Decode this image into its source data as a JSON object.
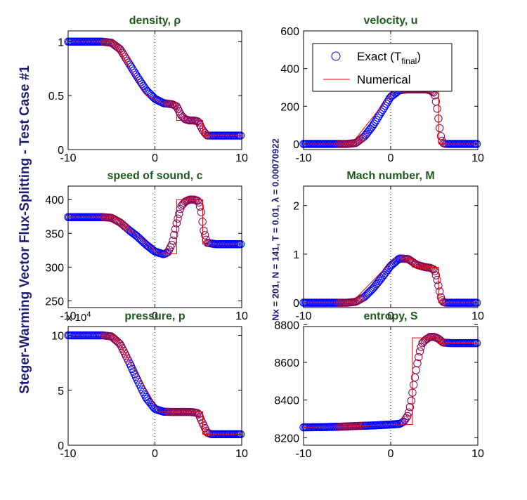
{
  "figure": {
    "side_title": "Steger-Warming Vector Flux-Splitting - Test Case #1",
    "side_subtitle": "Nx = 201,  N = 141,  T = 0.01,  λ = 0.00070922"
  },
  "legend": {
    "exact_label": "Exact (T",
    "exact_subscript": "final",
    "exact_close": ")",
    "numerical_label": "Numerical"
  },
  "colors": {
    "exact_marker": "#0000ff",
    "exact_marker_alt": "#8b0050",
    "numerical_line": "#e00000",
    "title": "#1f5a1f"
  },
  "chart_data": [
    {
      "type": "line",
      "title": "density, ρ",
      "xlim": [
        -10,
        10
      ],
      "ylim": [
        0,
        1.1
      ],
      "xticks": [
        -10,
        0,
        10
      ],
      "yticks": [
        0,
        0.5,
        1
      ],
      "ytick_labels": [
        "0",
        "0.5",
        "1"
      ],
      "scale_note": "",
      "series": [
        {
          "role": "exact",
          "x": [
            -10,
            -8,
            -6,
            -5,
            -4,
            -3,
            -2,
            -1,
            0,
            1,
            2,
            2.5,
            3,
            3.5,
            4,
            4.5,
            5,
            5.5,
            6,
            7,
            8,
            9,
            10
          ],
          "y": [
            1,
            1,
            1,
            0.99,
            0.93,
            0.8,
            0.67,
            0.55,
            0.47,
            0.43,
            0.42,
            0.4,
            0.32,
            0.28,
            0.27,
            0.27,
            0.26,
            0.18,
            0.13,
            0.13,
            0.13,
            0.13,
            0.13
          ]
        },
        {
          "role": "numerical",
          "x": [
            -10,
            -4.5,
            -4.5,
            -1,
            1,
            2.5,
            2.5,
            5.5,
            5.5,
            10
          ],
          "y": [
            1,
            1,
            0.98,
            0.5,
            0.43,
            0.43,
            0.27,
            0.27,
            0.13,
            0.13
          ]
        }
      ]
    },
    {
      "type": "line",
      "title": "velocity, u",
      "xlim": [
        -10,
        10
      ],
      "ylim": [
        -30,
        600
      ],
      "xticks": [
        -10,
        0,
        10
      ],
      "yticks": [
        0,
        200,
        400,
        600
      ],
      "ytick_labels": [
        "0",
        "200",
        "400",
        "600"
      ],
      "scale_note": "",
      "series": [
        {
          "role": "exact",
          "x": [
            -10,
            -8,
            -6,
            -5,
            -4,
            -3,
            -2,
            -1,
            0,
            1,
            2,
            3,
            4,
            4.5,
            5,
            5.3,
            5.6,
            5.8,
            6,
            6.3,
            7,
            8,
            9,
            10
          ],
          "y": [
            0,
            0,
            0,
            0,
            5,
            40,
            100,
            175,
            250,
            285,
            290,
            290,
            290,
            285,
            270,
            200,
            90,
            30,
            5,
            0,
            0,
            0,
            0,
            0
          ]
        },
        {
          "role": "numerical",
          "x": [
            -10,
            -4.5,
            -4.5,
            0.5,
            5.5,
            5.5,
            10
          ],
          "y": [
            0,
            0,
            0,
            290,
            290,
            0,
            0
          ]
        }
      ]
    },
    {
      "type": "line",
      "title": "speed of sound, c",
      "xlim": [
        -10,
        10
      ],
      "ylim": [
        240,
        420
      ],
      "xticks": [
        -10,
        0,
        10
      ],
      "yticks": [
        250,
        300,
        350,
        400
      ],
      "ytick_labels": [
        "250",
        "300",
        "350",
        "400"
      ],
      "scale_note": "",
      "series": [
        {
          "role": "exact",
          "x": [
            -10,
            -8,
            -6,
            -5,
            -4,
            -3,
            -2,
            -1,
            0,
            1,
            1.5,
            2,
            2.5,
            3,
            3.5,
            4,
            4.5,
            5,
            5.3,
            5.6,
            6,
            7,
            8,
            9,
            10
          ],
          "y": [
            374,
            374,
            374,
            373,
            366,
            355,
            345,
            333,
            323,
            319,
            322,
            335,
            365,
            390,
            397,
            400,
            400,
            398,
            385,
            355,
            336,
            334,
            334,
            334,
            334
          ]
        },
        {
          "role": "numerical",
          "x": [
            -10,
            -4.5,
            -4.5,
            0.5,
            2.5,
            2.5,
            5.5,
            5.5,
            10
          ],
          "y": [
            374,
            374,
            372,
            320,
            320,
            400,
            400,
            334,
            334
          ]
        }
      ]
    },
    {
      "type": "line",
      "title": "Mach number, M",
      "xlim": [
        -10,
        10
      ],
      "ylim": [
        -0.1,
        2.4
      ],
      "xticks": [
        -10,
        0,
        10
      ],
      "yticks": [
        0,
        1,
        2
      ],
      "ytick_labels": [
        "0",
        "1",
        "2"
      ],
      "scale_note": "",
      "series": [
        {
          "role": "exact",
          "x": [
            -10,
            -8,
            -6,
            -5,
            -4,
            -3,
            -2,
            -1,
            0,
            1,
            2,
            3,
            4,
            4.5,
            5,
            5.3,
            5.6,
            5.8,
            6,
            6.3,
            7,
            8,
            9,
            10
          ],
          "y": [
            0,
            0,
            0,
            0,
            0.02,
            0.12,
            0.3,
            0.52,
            0.76,
            0.91,
            0.9,
            0.78,
            0.73,
            0.72,
            0.68,
            0.5,
            0.25,
            0.08,
            0.02,
            0,
            0,
            0,
            0,
            0
          ]
        },
        {
          "role": "numerical",
          "x": [
            -10,
            -4.5,
            -4.5,
            0.5,
            2.5,
            2.5,
            5.5,
            5.5,
            10
          ],
          "y": [
            0,
            0,
            0,
            0.92,
            0.9,
            0.73,
            0.73,
            0,
            0
          ]
        }
      ]
    },
    {
      "type": "line",
      "title": "pressure, p",
      "xlim": [
        -10,
        10
      ],
      "ylim": [
        0,
        10.8
      ],
      "xticks": [
        -10,
        0,
        10
      ],
      "yticks": [
        0,
        5,
        10
      ],
      "ytick_labels": [
        "0",
        "5",
        "10"
      ],
      "scale_note": "x 10",
      "scale_exponent": "4",
      "series": [
        {
          "role": "exact",
          "x": [
            -10,
            -8,
            -6,
            -5,
            -4,
            -3,
            -2,
            -1,
            0,
            1,
            2,
            3,
            4,
            4.5,
            5,
            5.5,
            6,
            6.5,
            7,
            8,
            9,
            10
          ],
          "y": [
            10,
            10,
            10,
            9.9,
            9.2,
            7.6,
            5.9,
            4.3,
            3.3,
            3.05,
            3.03,
            3.03,
            3.03,
            3.0,
            2.9,
            2.0,
            1.15,
            1.0,
            1.0,
            1.0,
            1.0,
            1.0
          ]
        },
        {
          "role": "numerical",
          "x": [
            -10,
            -4.5,
            -4.5,
            0.5,
            5.5,
            5.5,
            10
          ],
          "y": [
            10,
            10,
            9.8,
            3.05,
            3.05,
            1.0,
            1.0
          ]
        }
      ]
    },
    {
      "type": "line",
      "title": "entropy, S",
      "xlim": [
        -10,
        10
      ],
      "ylim": [
        8160,
        8790
      ],
      "xticks": [
        -10,
        0,
        10
      ],
      "yticks": [
        8200,
        8400,
        8600,
        8800
      ],
      "ytick_labels": [
        "8200",
        "8400",
        "8600",
        "8800"
      ],
      "scale_note": "",
      "series": [
        {
          "role": "exact",
          "x": [
            -10,
            -8,
            -6,
            -4,
            -2,
            0,
            1,
            1.5,
            2,
            2.3,
            2.6,
            3,
            3.3,
            3.6,
            4,
            4.5,
            5,
            5.5,
            6,
            7,
            8,
            9,
            10
          ],
          "y": [
            8255,
            8256,
            8258,
            8262,
            8265,
            8270,
            8273,
            8285,
            8320,
            8380,
            8470,
            8580,
            8650,
            8700,
            8720,
            8735,
            8735,
            8725,
            8705,
            8702,
            8702,
            8702,
            8702
          ]
        },
        {
          "role": "numerical",
          "x": [
            -10,
            2.5,
            2.5,
            5.5,
            5.5,
            10
          ],
          "y": [
            8255,
            8270,
            8730,
            8730,
            8702,
            8702
          ]
        }
      ]
    }
  ]
}
